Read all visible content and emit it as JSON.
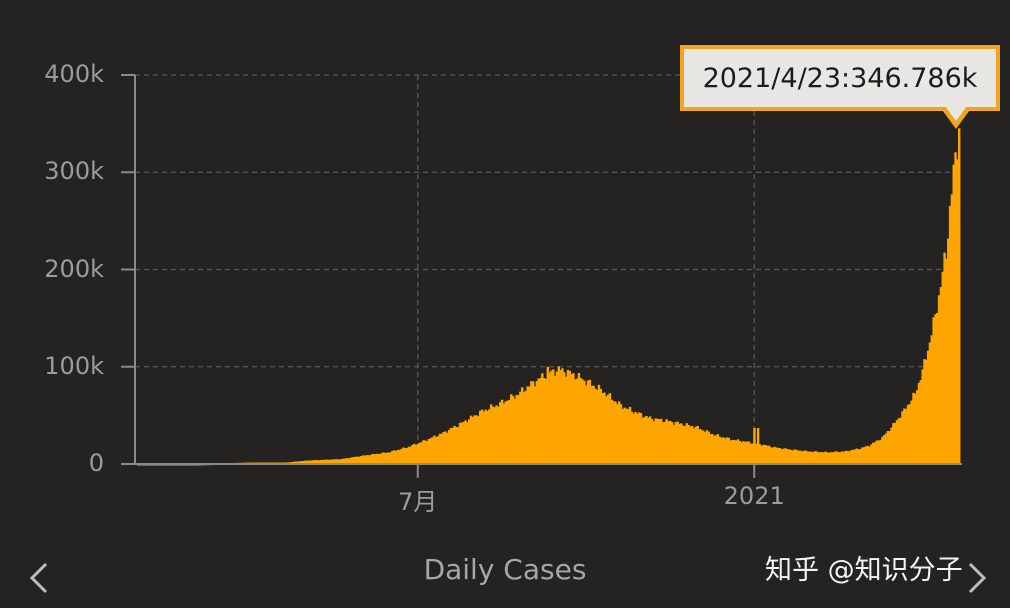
{
  "chart_data": {
    "type": "bar",
    "title": "Daily Cases",
    "ylim": [
      0,
      400000
    ],
    "yticks": [
      {
        "value": 0,
        "label": "0"
      },
      {
        "value": 100000,
        "label": "100k"
      },
      {
        "value": 200000,
        "label": "200k"
      },
      {
        "value": 300000,
        "label": "300k"
      },
      {
        "value": 400000,
        "label": "400k"
      }
    ],
    "xticks": [
      {
        "value": "2020-07-01",
        "label": "7月"
      },
      {
        "value": "2021-01-01",
        "label": "2021"
      }
    ],
    "grid": true,
    "bar_color": "#ffa500",
    "series": [
      {
        "points": [
          [
            "2020-01-30",
            0
          ],
          [
            "2020-03-01",
            0
          ],
          [
            "2020-04-01",
            1500
          ],
          [
            "2020-04-20",
            1500
          ],
          [
            "2020-05-01",
            3500
          ],
          [
            "2020-05-20",
            5000
          ],
          [
            "2020-06-01",
            8500
          ],
          [
            "2020-06-15",
            12000
          ],
          [
            "2020-06-25",
            17000
          ],
          [
            "2020-07-05",
            24000
          ],
          [
            "2020-07-15",
            32000
          ],
          [
            "2020-07-25",
            42000
          ],
          [
            "2020-08-05",
            54000
          ],
          [
            "2020-08-15",
            62000
          ],
          [
            "2020-08-25",
            72000
          ],
          [
            "2020-09-01",
            82000
          ],
          [
            "2020-09-10",
            93000
          ],
          [
            "2020-09-16",
            97000
          ],
          [
            "2020-09-20",
            95000
          ],
          [
            "2020-09-25",
            91000
          ],
          [
            "2020-10-01",
            85000
          ],
          [
            "2020-10-10",
            75000
          ],
          [
            "2020-10-20",
            60000
          ],
          [
            "2020-10-28",
            53000
          ],
          [
            "2020-11-05",
            47000
          ],
          [
            "2020-11-12",
            45000
          ],
          [
            "2020-11-20",
            42000
          ],
          [
            "2020-11-30",
            38000
          ],
          [
            "2020-12-10",
            30000
          ],
          [
            "2020-12-20",
            25000
          ],
          [
            "2020-12-30",
            22000
          ],
          [
            "2021-01-05",
            20000
          ],
          [
            "2021-01-12",
            17000
          ],
          [
            "2021-01-20",
            15000
          ],
          [
            "2021-01-30",
            13000
          ],
          [
            "2021-02-10",
            12000
          ],
          [
            "2021-02-20",
            13000
          ],
          [
            "2021-02-28",
            16000
          ],
          [
            "2021-03-05",
            19000
          ],
          [
            "2021-03-12",
            27000
          ],
          [
            "2021-03-18",
            40000
          ],
          [
            "2021-03-24",
            55000
          ],
          [
            "2021-03-30",
            72000
          ],
          [
            "2021-04-03",
            95000
          ],
          [
            "2021-04-07",
            126000
          ],
          [
            "2021-04-10",
            152000
          ],
          [
            "2021-04-13",
            184000
          ],
          [
            "2021-04-16",
            218000
          ],
          [
            "2021-04-18",
            262000
          ],
          [
            "2021-04-20",
            297000
          ],
          [
            "2021-04-21",
            314000
          ],
          [
            "2021-04-22",
            332000
          ],
          [
            "2021-04-23",
            346786
          ]
        ],
        "spikes": [
          [
            "2021-01-01",
            37000
          ],
          [
            "2021-01-03",
            37000
          ],
          [
            "2020-09-10",
            100000
          ]
        ]
      }
    ]
  },
  "tooltip": {
    "text": "2021/4/23:346.786k"
  },
  "nav": {
    "prev_icon": "chevron-left-icon",
    "next_icon": "chevron-right-icon"
  },
  "watermark": {
    "text": "知乎 @知识分子"
  }
}
